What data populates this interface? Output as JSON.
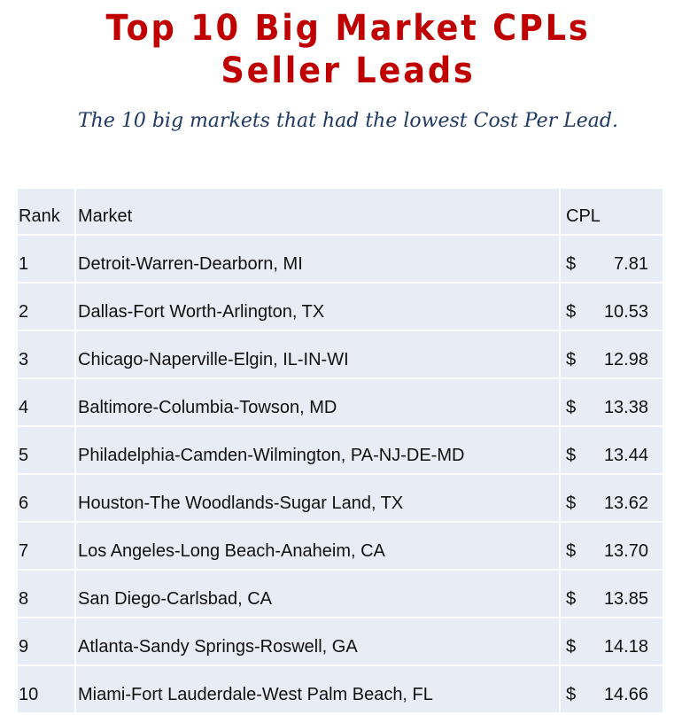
{
  "title": {
    "line1": "Top 10 Big Market CPLs",
    "line2": "Seller Leads"
  },
  "subtitle": "The 10 big markets that had the lowest Cost Per Lead.",
  "table": {
    "headers": [
      "Rank",
      "Market",
      "CPL"
    ],
    "rows": [
      {
        "rank": "1",
        "market": "Detroit-Warren-Dearborn, MI",
        "currency": "$",
        "cpl": "7.81"
      },
      {
        "rank": "2",
        "market": "Dallas-Fort Worth-Arlington, TX",
        "currency": "$",
        "cpl": "10.53"
      },
      {
        "rank": "3",
        "market": "Chicago-Naperville-Elgin, IL-IN-WI",
        "currency": "$",
        "cpl": "12.98"
      },
      {
        "rank": "4",
        "market": "Baltimore-Columbia-Towson, MD",
        "currency": "$",
        "cpl": "13.38"
      },
      {
        "rank": "5",
        "market": "Philadelphia-Camden-Wilmington, PA-NJ-DE-MD",
        "currency": "$",
        "cpl": "13.44"
      },
      {
        "rank": "6",
        "market": "Houston-The Woodlands-Sugar Land, TX",
        "currency": "$",
        "cpl": "13.62"
      },
      {
        "rank": "7",
        "market": "Los Angeles-Long Beach-Anaheim, CA",
        "currency": "$",
        "cpl": "13.70"
      },
      {
        "rank": "8",
        "market": "San Diego-Carlsbad, CA",
        "currency": "$",
        "cpl": "13.85"
      },
      {
        "rank": "9",
        "market": "Atlanta-Sandy Springs-Roswell, GA",
        "currency": "$",
        "cpl": "14.18"
      },
      {
        "rank": "10",
        "market": "Miami-Fort Lauderdale-West Palm Beach, FL",
        "currency": "$",
        "cpl": "14.66"
      }
    ]
  },
  "colors": {
    "title": "#c00000",
    "subtitle": "#1f3864",
    "cell_bg": "#e8ecf4"
  }
}
